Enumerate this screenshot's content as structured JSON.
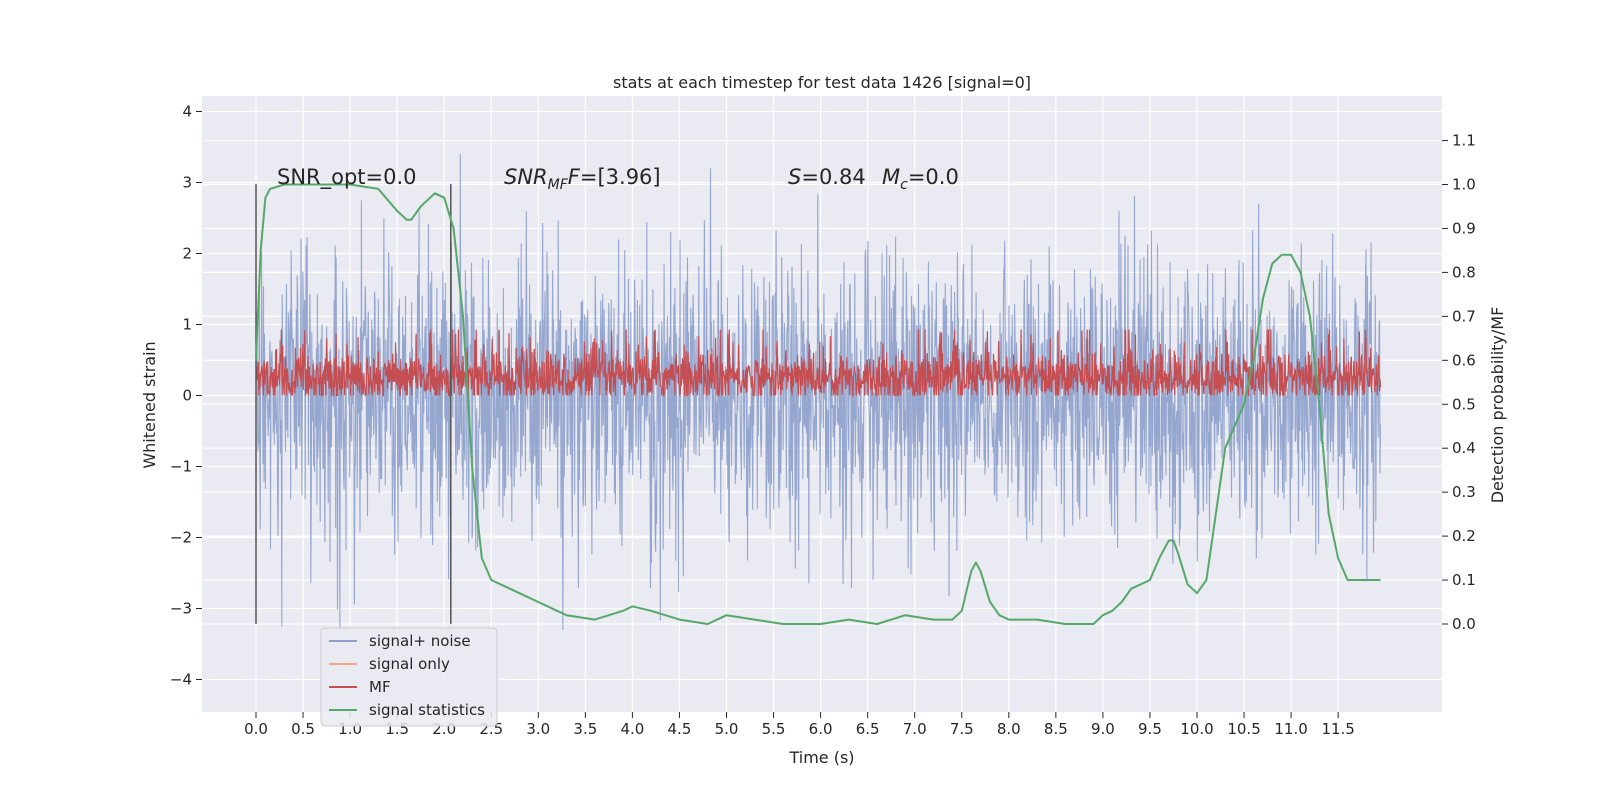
{
  "chart_data": {
    "type": "line",
    "title": "stats at each timestep for test data 1426 [signal=0]",
    "xlabel": "Time (s)",
    "ylabel": "Whitened strain",
    "ylabel_right": "Detection probability/MF",
    "xlim": [
      -0.6,
      12.6
    ],
    "ylim": [
      -4.4,
      4.2
    ],
    "ylim_right": [
      -0.2,
      1.2
    ],
    "x_ticks": [
      "0.0",
      "0.5",
      "1.0",
      "1.5",
      "2.0",
      "2.5",
      "3.0",
      "3.5",
      "4.0",
      "4.5",
      "5.0",
      "5.5",
      "6.0",
      "6.5",
      "7.0",
      "7.5",
      "8.0",
      "8.5",
      "9.0",
      "9.5",
      "10.0",
      "10.5",
      "11.0",
      "11.5"
    ],
    "y_ticks": [
      "4",
      "3",
      "2",
      "1",
      "0",
      "−1",
      "−2",
      "−3",
      "−4"
    ],
    "y_ticks_right": [
      "1.1",
      "1.0",
      "0.9",
      "0.8",
      "0.7",
      "0.6",
      "0.5",
      "0.4",
      "0.3",
      "0.2",
      "0.1",
      "0.0"
    ],
    "grid": true,
    "legend_position": "lower-left",
    "annotations": {
      "snr_opt": "SNR_opt=0.0",
      "snr_mf_prefix": "SNR",
      "snr_mf_sub": "MF",
      "snr_mf_value": "=[3.96]",
      "s_label": "S",
      "s_value": "=0.84",
      "mc_label": "M",
      "mc_sub": "c",
      "mc_value": "=0.0"
    },
    "vertical_markers": [
      0.0,
      2.07
    ],
    "series": [
      {
        "name": "signal+ noise",
        "color": "#8da0cb",
        "axis": "left",
        "description_range": [
          -3.3,
          3.85
        ],
        "noise_sigma": 1.0
      },
      {
        "name": "signal only",
        "color": "#f4a582",
        "axis": "left",
        "values": []
      },
      {
        "name": "MF",
        "color": "#c44e52",
        "axis": "right",
        "baseline": 0.56,
        "band": [
          0.52,
          0.65
        ]
      },
      {
        "name": "signal statistics",
        "color": "#55a868",
        "axis": "right",
        "x": [
          0.0,
          0.05,
          0.1,
          0.15,
          0.3,
          0.6,
          1.0,
          1.3,
          1.5,
          1.6,
          1.65,
          1.75,
          1.9,
          2.0,
          2.1,
          2.2,
          2.3,
          2.4,
          2.5,
          2.7,
          3.0,
          3.3,
          3.6,
          3.9,
          4.0,
          4.2,
          4.5,
          4.8,
          5.0,
          5.3,
          5.6,
          6.0,
          6.3,
          6.6,
          6.9,
          7.2,
          7.4,
          7.5,
          7.6,
          7.65,
          7.7,
          7.8,
          7.9,
          8.0,
          8.3,
          8.6,
          8.9,
          9.0,
          9.1,
          9.2,
          9.3,
          9.5,
          9.6,
          9.7,
          9.75,
          9.8,
          9.9,
          10.0,
          10.1,
          10.2,
          10.3,
          10.4,
          10.5,
          10.6,
          10.7,
          10.8,
          10.9,
          11.0,
          11.1,
          11.2,
          11.3,
          11.4,
          11.5,
          11.6,
          11.7,
          11.8,
          11.95
        ],
        "values": [
          0.6,
          0.85,
          0.97,
          0.99,
          1.0,
          1.0,
          1.0,
          0.99,
          0.94,
          0.92,
          0.92,
          0.95,
          0.98,
          0.97,
          0.9,
          0.7,
          0.35,
          0.15,
          0.1,
          0.08,
          0.05,
          0.02,
          0.01,
          0.03,
          0.04,
          0.03,
          0.01,
          0.0,
          0.02,
          0.01,
          0.0,
          0.0,
          0.01,
          0.0,
          0.02,
          0.01,
          0.01,
          0.03,
          0.12,
          0.14,
          0.12,
          0.05,
          0.02,
          0.01,
          0.01,
          0.0,
          0.0,
          0.02,
          0.03,
          0.05,
          0.08,
          0.1,
          0.15,
          0.19,
          0.19,
          0.16,
          0.09,
          0.07,
          0.1,
          0.25,
          0.4,
          0.45,
          0.5,
          0.6,
          0.74,
          0.82,
          0.84,
          0.84,
          0.8,
          0.7,
          0.5,
          0.25,
          0.15,
          0.1,
          0.1,
          0.1,
          0.1
        ]
      }
    ]
  }
}
